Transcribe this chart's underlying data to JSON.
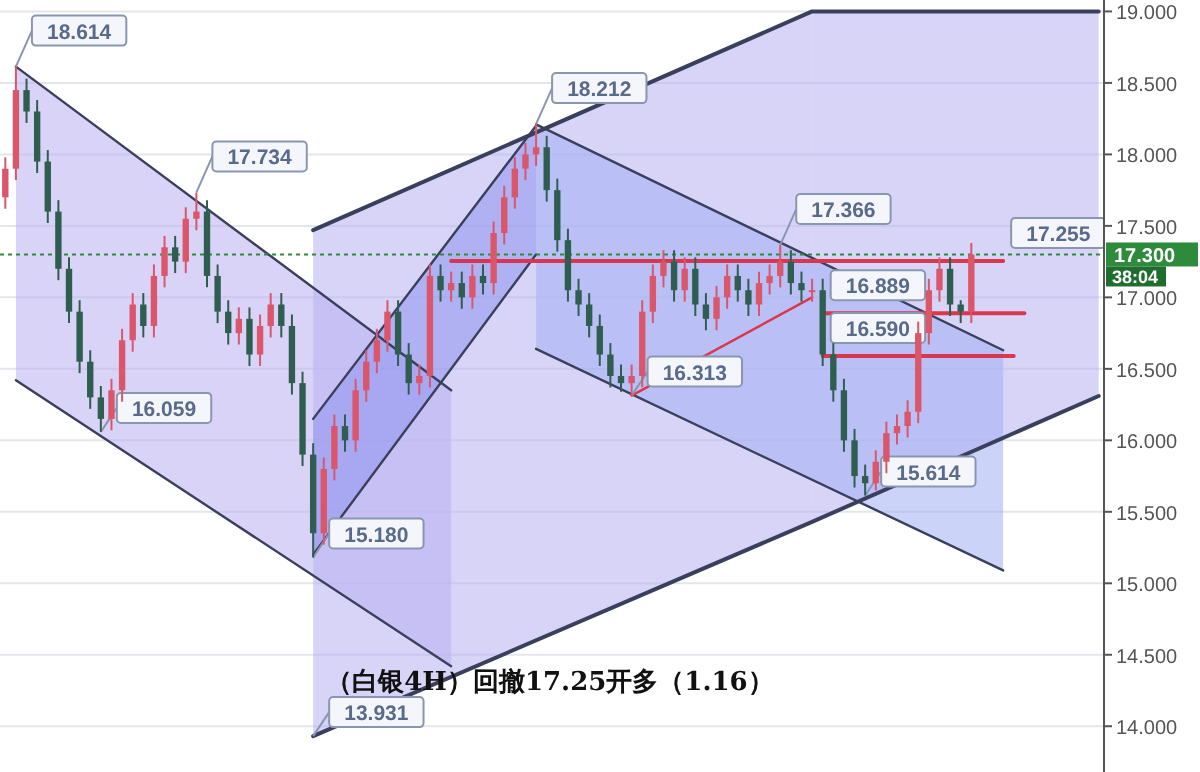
{
  "chart_data": {
    "type": "candlestick",
    "categories": [
      null,
      null,
      null,
      null,
      null,
      null,
      null,
      null,
      null,
      null,
      null,
      null,
      null,
      null,
      null,
      null,
      null,
      null,
      null,
      null,
      null,
      null,
      null,
      null,
      null,
      null,
      null,
      null,
      null,
      null,
      null,
      null,
      null,
      null,
      null,
      null,
      null,
      null,
      null,
      null,
      null,
      null,
      null,
      null,
      null,
      null,
      null,
      null,
      null,
      null,
      null,
      null,
      null,
      null,
      null,
      null,
      null,
      null,
      null,
      null,
      null,
      null,
      null,
      null,
      null,
      null,
      null,
      null,
      null,
      null,
      null,
      null,
      null,
      null,
      null,
      null,
      null,
      null,
      null,
      null,
      null,
      null,
      null,
      null,
      null,
      null,
      null,
      null,
      null,
      null,
      null,
      null,
      null,
      null,
      null,
      null,
      null,
      null,
      null,
      null,
      null,
      null,
      null,
      null
    ],
    "ohlc": [
      [
        17.7,
        17.98,
        17.62,
        17.9
      ],
      [
        17.9,
        18.614,
        17.82,
        18.45
      ],
      [
        18.45,
        18.53,
        18.22,
        18.3
      ],
      [
        18.3,
        18.38,
        17.87,
        17.95
      ],
      [
        17.95,
        18.03,
        17.52,
        17.6
      ],
      [
        17.6,
        17.68,
        17.12,
        17.2
      ],
      [
        17.2,
        17.28,
        16.82,
        16.9
      ],
      [
        16.9,
        16.98,
        16.47,
        16.55
      ],
      [
        16.55,
        16.63,
        16.22,
        16.3
      ],
      [
        16.3,
        16.38,
        16.059,
        16.15
      ],
      [
        16.15,
        16.43,
        16.07,
        16.35
      ],
      [
        16.35,
        16.78,
        16.27,
        16.7
      ],
      [
        16.7,
        17.03,
        16.62,
        16.95
      ],
      [
        16.95,
        17.03,
        16.72,
        16.8
      ],
      [
        16.8,
        17.23,
        16.72,
        17.15
      ],
      [
        17.15,
        17.43,
        17.07,
        17.35
      ],
      [
        17.35,
        17.43,
        17.17,
        17.25
      ],
      [
        17.25,
        17.63,
        17.17,
        17.55
      ],
      [
        17.55,
        17.734,
        17.47,
        17.6
      ],
      [
        17.6,
        17.68,
        17.07,
        17.15
      ],
      [
        17.15,
        17.23,
        16.82,
        16.9
      ],
      [
        16.9,
        16.98,
        16.67,
        16.75
      ],
      [
        16.75,
        16.93,
        16.67,
        16.85
      ],
      [
        16.85,
        16.93,
        16.52,
        16.6
      ],
      [
        16.6,
        16.88,
        16.52,
        16.8
      ],
      [
        16.8,
        17.03,
        16.72,
        16.95
      ],
      [
        16.95,
        17.03,
        16.72,
        16.8
      ],
      [
        16.8,
        16.88,
        16.32,
        16.4
      ],
      [
        16.4,
        16.48,
        15.82,
        15.9
      ],
      [
        15.9,
        15.98,
        15.18,
        15.35
      ],
      [
        15.35,
        15.88,
        15.27,
        15.8
      ],
      [
        15.8,
        16.18,
        15.72,
        16.1
      ],
      [
        16.1,
        16.18,
        15.92,
        16.0
      ],
      [
        16.0,
        16.43,
        15.92,
        16.35
      ],
      [
        16.35,
        16.63,
        16.27,
        16.55
      ],
      [
        16.55,
        16.78,
        16.47,
        16.7
      ],
      [
        16.7,
        16.98,
        16.62,
        16.9
      ],
      [
        16.9,
        16.98,
        16.52,
        16.6
      ],
      [
        16.6,
        16.68,
        16.32,
        16.4
      ],
      [
        16.4,
        16.53,
        16.32,
        16.45
      ],
      [
        16.45,
        17.23,
        16.37,
        17.15
      ],
      [
        17.15,
        17.23,
        16.97,
        17.05
      ],
      [
        17.05,
        17.18,
        16.97,
        17.1
      ],
      [
        17.1,
        17.18,
        16.92,
        17.0
      ],
      [
        17.0,
        17.23,
        16.92,
        17.15
      ],
      [
        17.15,
        17.23,
        17.02,
        17.1
      ],
      [
        17.1,
        17.53,
        17.02,
        17.45
      ],
      [
        17.45,
        17.78,
        17.37,
        17.7
      ],
      [
        17.7,
        17.98,
        17.62,
        17.9
      ],
      [
        17.9,
        18.08,
        17.82,
        18.0
      ],
      [
        18.0,
        18.212,
        17.92,
        18.05
      ],
      [
        18.05,
        18.13,
        17.67,
        17.75
      ],
      [
        17.75,
        17.83,
        17.32,
        17.4
      ],
      [
        17.4,
        17.48,
        16.97,
        17.05
      ],
      [
        17.05,
        17.13,
        16.87,
        16.95
      ],
      [
        16.95,
        17.03,
        16.72,
        16.8
      ],
      [
        16.8,
        16.88,
        16.52,
        16.6
      ],
      [
        16.6,
        16.68,
        16.37,
        16.45
      ],
      [
        16.45,
        16.53,
        16.34,
        16.4
      ],
      [
        16.4,
        16.53,
        16.313,
        16.45
      ],
      [
        16.45,
        16.98,
        16.37,
        16.9
      ],
      [
        16.9,
        17.23,
        16.82,
        17.15
      ],
      [
        17.15,
        17.33,
        17.07,
        17.25
      ],
      [
        17.25,
        17.33,
        16.97,
        17.05
      ],
      [
        17.05,
        17.28,
        16.97,
        17.2
      ],
      [
        17.2,
        17.28,
        16.87,
        16.95
      ],
      [
        16.95,
        17.03,
        16.77,
        16.85
      ],
      [
        16.85,
        17.08,
        16.77,
        17.0
      ],
      [
        17.0,
        17.23,
        16.92,
        17.15
      ],
      [
        17.15,
        17.23,
        16.97,
        17.05
      ],
      [
        17.05,
        17.13,
        16.87,
        16.95
      ],
      [
        16.95,
        17.18,
        16.87,
        17.1
      ],
      [
        17.1,
        17.23,
        17.02,
        17.15
      ],
      [
        17.15,
        17.366,
        17.07,
        17.25
      ],
      [
        17.25,
        17.33,
        17.02,
        17.1
      ],
      [
        17.1,
        17.18,
        16.97,
        17.05
      ],
      [
        17.05,
        17.13,
        16.97,
        17.05
      ],
      [
        17.05,
        17.13,
        16.52,
        16.6
      ],
      [
        16.6,
        16.68,
        16.27,
        16.35
      ],
      [
        16.35,
        16.43,
        15.92,
        16.0
      ],
      [
        16.0,
        16.08,
        15.67,
        15.75
      ],
      [
        15.75,
        15.83,
        15.614,
        15.7
      ],
      [
        15.7,
        15.93,
        15.65,
        15.85
      ],
      [
        15.85,
        16.13,
        15.77,
        16.05
      ],
      [
        16.05,
        16.18,
        15.97,
        16.1
      ],
      [
        16.1,
        16.28,
        16.02,
        16.2
      ],
      [
        16.2,
        16.83,
        16.12,
        16.75
      ],
      [
        16.75,
        17.13,
        16.67,
        17.05
      ],
      [
        17.05,
        17.28,
        16.97,
        17.2
      ],
      [
        17.2,
        17.28,
        16.87,
        16.95
      ],
      [
        16.95,
        16.98,
        16.82,
        16.9
      ],
      [
        16.9,
        17.38,
        16.82,
        17.3
      ],
      null,
      null,
      null,
      null,
      null,
      null,
      null,
      null,
      null,
      null,
      null,
      null
    ],
    "value_labels": [
      null,
      "18.614",
      null,
      null,
      null,
      null,
      null,
      null,
      null,
      "16.059",
      null,
      null,
      null,
      null,
      null,
      null,
      null,
      null,
      "17.734",
      null,
      null,
      null,
      null,
      null,
      null,
      null,
      null,
      null,
      null,
      "15.180",
      null,
      null,
      null,
      null,
      null,
      null,
      null,
      null,
      null,
      null,
      null,
      null,
      null,
      null,
      null,
      null,
      null,
      null,
      null,
      null,
      "18.212",
      null,
      null,
      null,
      null,
      null,
      null,
      null,
      null,
      "16.313",
      null,
      null,
      null,
      null,
      null,
      null,
      null,
      null,
      null,
      null,
      null,
      null,
      null,
      "17.366",
      null,
      null,
      null,
      null,
      null,
      null,
      null,
      "15.614",
      null,
      null,
      null,
      null,
      null,
      null,
      null,
      null,
      null,
      null,
      null,
      null,
      null,
      null,
      null,
      null,
      null,
      null,
      null,
      null,
      null,
      null
    ],
    "series": [
      {
        "type": "line",
        "color": "#3a3f5c",
        "values": [
          null,
          null,
          null,
          null,
          null,
          null,
          null,
          null,
          null,
          null,
          null,
          null,
          null,
          null,
          null,
          null,
          null,
          null,
          null,
          null,
          null,
          null,
          null,
          null,
          null,
          null,
          null,
          null,
          null,
          17.47,
          null,
          null,
          null,
          null,
          null,
          null,
          null,
          null,
          null,
          null,
          null,
          null,
          null,
          null,
          null,
          null,
          null,
          null,
          null,
          null,
          null,
          null,
          null,
          null,
          null,
          null,
          null,
          null,
          null,
          null,
          null,
          null,
          null,
          null,
          null,
          null,
          null,
          null,
          null,
          null,
          null,
          null,
          null,
          null,
          null,
          null,
          19.0,
          null,
          null,
          null,
          null,
          null,
          null,
          null,
          null,
          null,
          null,
          null,
          null,
          null,
          null,
          null,
          null,
          null,
          null,
          null,
          null,
          null,
          null,
          null,
          null,
          null,
          null,
          19.0
        ]
      },
      {
        "type": "line",
        "color": "#3a3f5c",
        "values": [
          null,
          null,
          null,
          null,
          null,
          null,
          null,
          null,
          null,
          null,
          null,
          null,
          null,
          null,
          null,
          null,
          null,
          null,
          null,
          null,
          null,
          null,
          null,
          null,
          null,
          null,
          null,
          null,
          null,
          13.931,
          null,
          null,
          null,
          null,
          null,
          null,
          null,
          null,
          null,
          null,
          null,
          null,
          null,
          null,
          null,
          null,
          null,
          null,
          null,
          null,
          null,
          null,
          null,
          null,
          null,
          null,
          null,
          null,
          null,
          null,
          null,
          null,
          null,
          null,
          null,
          null,
          null,
          null,
          null,
          null,
          null,
          null,
          null,
          null,
          null,
          null,
          15.43,
          null,
          null,
          null,
          null,
          null,
          null,
          null,
          null,
          null,
          null,
          null,
          null,
          null,
          null,
          null,
          null,
          null,
          null,
          null,
          null,
          null,
          null,
          null,
          null,
          null,
          null,
          16.31
        ],
        "value_labels": [
          null,
          null,
          null,
          null,
          null,
          null,
          null,
          null,
          null,
          null,
          null,
          null,
          null,
          null,
          null,
          null,
          null,
          null,
          null,
          null,
          null,
          null,
          null,
          null,
          null,
          null,
          null,
          null,
          null,
          "13.931",
          null,
          null,
          null,
          null,
          null,
          null,
          null,
          null,
          null,
          null,
          null,
          null,
          null,
          null,
          null,
          null,
          null,
          null,
          null,
          null,
          null,
          null,
          null,
          null,
          null,
          null,
          null,
          null,
          null,
          null,
          null,
          null,
          null,
          null,
          null,
          null,
          null,
          null,
          null,
          null,
          null,
          null,
          null,
          null,
          null,
          null,
          null,
          null,
          null,
          null,
          null,
          null,
          null,
          null,
          null,
          null,
          null,
          null,
          null,
          null,
          null,
          null,
          null,
          null,
          null,
          null,
          null,
          null,
          null,
          null,
          null,
          null,
          null,
          null
        ]
      },
      {
        "type": "line",
        "color": "#3a3f5c",
        "values": [
          null,
          18.614,
          null,
          null,
          null,
          null,
          null,
          null,
          null,
          null,
          null,
          null,
          null,
          null,
          null,
          null,
          null,
          null,
          null,
          null,
          null,
          null,
          null,
          null,
          null,
          null,
          null,
          null,
          null,
          null,
          null,
          null,
          null,
          null,
          null,
          null,
          null,
          null,
          null,
          null,
          null,
          null,
          16.35,
          null,
          null,
          null,
          null,
          null,
          null,
          null,
          null,
          null,
          null,
          null,
          null,
          null,
          null,
          null,
          null,
          null,
          null,
          null,
          null,
          null,
          null,
          null,
          null,
          null,
          null,
          null,
          null,
          null,
          null,
          null,
          null,
          null,
          null,
          null,
          null,
          null,
          null,
          null,
          null,
          null,
          null,
          null,
          null,
          null,
          null,
          null,
          null,
          null,
          null,
          null,
          null,
          null,
          null,
          null,
          null,
          null,
          null,
          null,
          null,
          null
        ]
      },
      {
        "type": "line",
        "color": "#3a3f5c",
        "values": [
          null,
          16.42,
          null,
          null,
          null,
          null,
          null,
          null,
          null,
          null,
          null,
          null,
          null,
          null,
          null,
          null,
          null,
          null,
          null,
          null,
          null,
          null,
          null,
          null,
          null,
          null,
          null,
          null,
          null,
          null,
          null,
          null,
          null,
          null,
          null,
          null,
          null,
          null,
          null,
          null,
          null,
          null,
          14.42,
          null,
          null,
          null,
          null,
          null,
          null,
          null,
          null,
          null,
          null,
          null,
          null,
          null,
          null,
          null,
          null,
          null,
          null,
          null,
          null,
          null,
          null,
          null,
          null,
          null,
          null,
          null,
          null,
          null,
          null,
          null,
          null,
          null,
          null,
          null,
          null,
          null,
          null,
          null,
          null,
          null,
          null,
          null,
          null,
          null,
          null,
          null,
          null,
          null,
          null,
          null,
          null,
          null,
          null,
          null,
          null,
          null,
          null,
          null,
          null,
          null
        ]
      },
      {
        "type": "line",
        "color": "#3a3f5c",
        "values": [
          null,
          null,
          null,
          null,
          null,
          null,
          null,
          null,
          null,
          null,
          null,
          null,
          null,
          null,
          null,
          null,
          null,
          null,
          null,
          null,
          null,
          null,
          null,
          null,
          null,
          null,
          null,
          null,
          null,
          16.15,
          null,
          null,
          null,
          null,
          null,
          null,
          null,
          null,
          null,
          null,
          null,
          null,
          null,
          null,
          null,
          null,
          null,
          null,
          null,
          null,
          18.2,
          null,
          null,
          null,
          null,
          null,
          null,
          null,
          null,
          null,
          null,
          null,
          null,
          null,
          null,
          null,
          null,
          null,
          null,
          null,
          null,
          null,
          null,
          null,
          null,
          null,
          null,
          null,
          null,
          null,
          null,
          null,
          null,
          null,
          null,
          null,
          null,
          null,
          null,
          null,
          null,
          null,
          null,
          null,
          null,
          null,
          null,
          null,
          null,
          null,
          null,
          null,
          null,
          null
        ]
      },
      {
        "type": "line",
        "color": "#3a3f5c",
        "values": [
          null,
          null,
          null,
          null,
          null,
          null,
          null,
          null,
          null,
          null,
          null,
          null,
          null,
          null,
          null,
          null,
          null,
          null,
          null,
          null,
          null,
          null,
          null,
          null,
          null,
          null,
          null,
          null,
          null,
          15.2,
          null,
          null,
          null,
          null,
          null,
          null,
          null,
          null,
          null,
          null,
          null,
          null,
          null,
          null,
          null,
          null,
          null,
          null,
          null,
          null,
          17.3,
          null,
          null,
          null,
          null,
          null,
          null,
          null,
          null,
          null,
          null,
          null,
          null,
          null,
          null,
          null,
          null,
          null,
          null,
          null,
          null,
          null,
          null,
          null,
          null,
          null,
          null,
          null,
          null,
          null,
          null,
          null,
          null,
          null,
          null,
          null,
          null,
          null,
          null,
          null,
          null,
          null,
          null,
          null,
          null,
          null,
          null,
          null,
          null,
          null,
          null,
          null,
          null,
          null
        ]
      },
      {
        "type": "line",
        "color": "#3a3f5c",
        "values": [
          null,
          null,
          null,
          null,
          null,
          null,
          null,
          null,
          null,
          null,
          null,
          null,
          null,
          null,
          null,
          null,
          null,
          null,
          null,
          null,
          null,
          null,
          null,
          null,
          null,
          null,
          null,
          null,
          null,
          null,
          null,
          null,
          null,
          null,
          null,
          null,
          null,
          null,
          null,
          null,
          null,
          null,
          null,
          null,
          null,
          null,
          null,
          null,
          null,
          null,
          18.21,
          null,
          null,
          null,
          null,
          null,
          null,
          null,
          null,
          null,
          null,
          null,
          null,
          null,
          null,
          null,
          null,
          null,
          null,
          null,
          null,
          null,
          null,
          null,
          null,
          null,
          null,
          null,
          null,
          null,
          null,
          null,
          null,
          null,
          null,
          null,
          null,
          null,
          null,
          null,
          null,
          null,
          null,
          null,
          16.63,
          null,
          null,
          null,
          null,
          null,
          null,
          null,
          null,
          null
        ]
      },
      {
        "type": "line",
        "color": "#3a3f5c",
        "values": [
          null,
          null,
          null,
          null,
          null,
          null,
          null,
          null,
          null,
          null,
          null,
          null,
          null,
          null,
          null,
          null,
          null,
          null,
          null,
          null,
          null,
          null,
          null,
          null,
          null,
          null,
          null,
          null,
          null,
          null,
          null,
          null,
          null,
          null,
          null,
          null,
          null,
          null,
          null,
          null,
          null,
          null,
          null,
          null,
          null,
          null,
          null,
          null,
          null,
          null,
          16.64,
          null,
          null,
          null,
          null,
          null,
          null,
          null,
          null,
          null,
          null,
          null,
          null,
          null,
          null,
          null,
          null,
          null,
          null,
          null,
          null,
          null,
          null,
          null,
          null,
          null,
          null,
          null,
          null,
          null,
          null,
          null,
          null,
          null,
          null,
          null,
          null,
          null,
          null,
          null,
          null,
          null,
          null,
          null,
          15.09,
          null,
          null,
          null,
          null,
          null,
          null,
          null,
          null,
          null
        ]
      },
      {
        "type": "line",
        "color": "#d9364f",
        "values": [
          null,
          null,
          null,
          null,
          null,
          null,
          null,
          null,
          null,
          null,
          null,
          null,
          null,
          null,
          null,
          null,
          null,
          null,
          null,
          null,
          null,
          null,
          null,
          null,
          null,
          null,
          null,
          null,
          null,
          null,
          null,
          null,
          null,
          null,
          null,
          null,
          null,
          null,
          null,
          null,
          null,
          null,
          17.255,
          17.255,
          17.255,
          17.255,
          17.255,
          17.255,
          17.255,
          17.255,
          17.255,
          17.255,
          17.255,
          17.255,
          17.255,
          17.255,
          17.255,
          17.255,
          17.255,
          17.255,
          17.255,
          17.255,
          17.255,
          17.255,
          17.255,
          17.255,
          17.255,
          17.255,
          17.255,
          17.255,
          17.255,
          17.255,
          17.255,
          17.255,
          17.255,
          17.255,
          17.255,
          17.255,
          17.255,
          17.255,
          17.255,
          17.255,
          17.255,
          17.255,
          17.255,
          17.255,
          17.255,
          17.255,
          17.255,
          17.255,
          17.255,
          17.255,
          17.255,
          17.255,
          17.255,
          null,
          null,
          null,
          null,
          null,
          null,
          null,
          null,
          null
        ],
        "value_labels": [
          null,
          null,
          null,
          null,
          null,
          null,
          null,
          null,
          null,
          null,
          null,
          null,
          null,
          null,
          null,
          null,
          null,
          null,
          null,
          null,
          null,
          null,
          null,
          null,
          null,
          null,
          null,
          null,
          null,
          null,
          null,
          null,
          null,
          null,
          null,
          null,
          null,
          null,
          null,
          null,
          null,
          null,
          null,
          null,
          null,
          null,
          null,
          null,
          null,
          null,
          null,
          null,
          null,
          null,
          null,
          null,
          null,
          null,
          null,
          null,
          null,
          null,
          null,
          null,
          null,
          null,
          null,
          null,
          null,
          null,
          null,
          null,
          null,
          null,
          null,
          null,
          null,
          null,
          null,
          null,
          null,
          null,
          null,
          null,
          null,
          null,
          null,
          null,
          null,
          null,
          null,
          null,
          null,
          null,
          "17.255",
          null,
          null,
          null,
          null,
          null,
          null,
          null,
          null,
          null
        ]
      },
      {
        "type": "line",
        "color": "#d9364f",
        "values": [
          null,
          null,
          null,
          null,
          null,
          null,
          null,
          null,
          null,
          null,
          null,
          null,
          null,
          null,
          null,
          null,
          null,
          null,
          null,
          null,
          null,
          null,
          null,
          null,
          null,
          null,
          null,
          null,
          null,
          null,
          null,
          null,
          null,
          null,
          null,
          null,
          null,
          null,
          null,
          null,
          null,
          null,
          null,
          null,
          null,
          null,
          null,
          null,
          null,
          null,
          null,
          null,
          null,
          null,
          null,
          null,
          null,
          null,
          null,
          null,
          null,
          null,
          null,
          null,
          null,
          null,
          null,
          null,
          null,
          null,
          null,
          null,
          null,
          null,
          null,
          null,
          null,
          16.889,
          16.889,
          16.889,
          16.889,
          16.889,
          16.889,
          16.889,
          16.889,
          16.889,
          16.889,
          16.889,
          16.889,
          16.889,
          16.889,
          16.889,
          16.889,
          16.889,
          16.889,
          16.889,
          16.889,
          null,
          null,
          null,
          null,
          null,
          null,
          null
        ],
        "value_labels": [
          null,
          null,
          null,
          null,
          null,
          null,
          null,
          null,
          null,
          null,
          null,
          null,
          null,
          null,
          null,
          null,
          null,
          null,
          null,
          null,
          null,
          null,
          null,
          null,
          null,
          null,
          null,
          null,
          null,
          null,
          null,
          null,
          null,
          null,
          null,
          null,
          null,
          null,
          null,
          null,
          null,
          null,
          null,
          null,
          null,
          null,
          null,
          null,
          null,
          null,
          null,
          null,
          null,
          null,
          null,
          null,
          null,
          null,
          null,
          null,
          null,
          null,
          null,
          null,
          null,
          null,
          null,
          null,
          null,
          null,
          null,
          null,
          null,
          null,
          null,
          null,
          null,
          "16.889",
          null,
          null,
          null,
          null,
          null,
          null,
          null,
          null,
          null,
          null,
          null,
          null,
          null,
          null,
          null,
          null,
          null,
          null,
          null,
          null,
          null,
          null,
          null,
          null,
          null,
          null
        ]
      },
      {
        "type": "line",
        "color": "#d9364f",
        "values": [
          null,
          null,
          null,
          null,
          null,
          null,
          null,
          null,
          null,
          null,
          null,
          null,
          null,
          null,
          null,
          null,
          null,
          null,
          null,
          null,
          null,
          null,
          null,
          null,
          null,
          null,
          null,
          null,
          null,
          null,
          null,
          null,
          null,
          null,
          null,
          null,
          null,
          null,
          null,
          null,
          null,
          null,
          null,
          null,
          null,
          null,
          null,
          null,
          null,
          null,
          null,
          null,
          null,
          null,
          null,
          null,
          null,
          null,
          null,
          null,
          null,
          null,
          null,
          null,
          null,
          null,
          null,
          null,
          null,
          null,
          null,
          null,
          null,
          null,
          null,
          null,
          null,
          16.59,
          16.59,
          16.59,
          16.59,
          16.59,
          16.59,
          16.59,
          16.59,
          16.59,
          16.59,
          16.59,
          16.59,
          16.59,
          16.59,
          16.59,
          16.59,
          16.59,
          16.59,
          16.59,
          null,
          null,
          null,
          null,
          null,
          null,
          null,
          null
        ],
        "value_labels": [
          null,
          null,
          null,
          null,
          null,
          null,
          null,
          null,
          null,
          null,
          null,
          null,
          null,
          null,
          null,
          null,
          null,
          null,
          null,
          null,
          null,
          null,
          null,
          null,
          null,
          null,
          null,
          null,
          null,
          null,
          null,
          null,
          null,
          null,
          null,
          null,
          null,
          null,
          null,
          null,
          null,
          null,
          null,
          null,
          null,
          null,
          null,
          null,
          null,
          null,
          null,
          null,
          null,
          null,
          null,
          null,
          null,
          null,
          null,
          null,
          null,
          null,
          null,
          null,
          null,
          null,
          null,
          null,
          null,
          null,
          null,
          null,
          null,
          null,
          null,
          null,
          null,
          "16.590",
          null,
          null,
          null,
          null,
          null,
          null,
          null,
          null,
          null,
          null,
          null,
          null,
          null,
          null,
          null,
          null,
          null,
          null,
          null,
          null,
          null,
          null,
          null,
          null,
          null,
          null
        ]
      },
      {
        "type": "line",
        "color": "#d9364f",
        "values": [
          null,
          null,
          null,
          null,
          null,
          null,
          null,
          null,
          null,
          null,
          null,
          null,
          null,
          null,
          null,
          null,
          null,
          null,
          null,
          null,
          null,
          null,
          null,
          null,
          null,
          null,
          null,
          null,
          null,
          null,
          null,
          null,
          null,
          null,
          null,
          null,
          null,
          null,
          null,
          null,
          null,
          null,
          null,
          null,
          null,
          null,
          null,
          null,
          null,
          null,
          null,
          null,
          null,
          null,
          null,
          null,
          null,
          null,
          null,
          16.313,
          null,
          null,
          null,
          null,
          null,
          null,
          null,
          null,
          null,
          null,
          null,
          null,
          null,
          null,
          null,
          null,
          17.0,
          null,
          null,
          null,
          null,
          null,
          null,
          null,
          null,
          null,
          null,
          null,
          null,
          null,
          null,
          null,
          null,
          null,
          null,
          null,
          null,
          null,
          null,
          null,
          null,
          null,
          null,
          null
        ]
      }
    ],
    "ylim": [
      13.68,
      19.08
    ],
    "yticks": [
      {
        "value": 14,
        "label": "14.000"
      },
      {
        "value": 14.5,
        "label": "14.500"
      },
      {
        "value": 15,
        "label": "15.000"
      },
      {
        "value": 15.5,
        "label": "15.500"
      },
      {
        "value": 16,
        "label": "16.000"
      },
      {
        "value": 16.5,
        "label": "16.500"
      },
      {
        "value": 17,
        "label": "17.000"
      },
      {
        "value": 17.5,
        "label": "17.500"
      },
      {
        "value": 18,
        "label": "18.000"
      },
      {
        "value": 18.5,
        "label": "18.500"
      },
      {
        "value": 19,
        "label": "19.000"
      }
    ],
    "grid": "y",
    "ref_lines": [
      {
        "axis": "y",
        "value": 17.3,
        "label": "17.300",
        "color": "#2e8b3c",
        "line_style": "dotted"
      }
    ],
    "annotations": [
      "（白银4H）回撤17.25开多（1.16）",
      "38:04"
    ]
  }
}
